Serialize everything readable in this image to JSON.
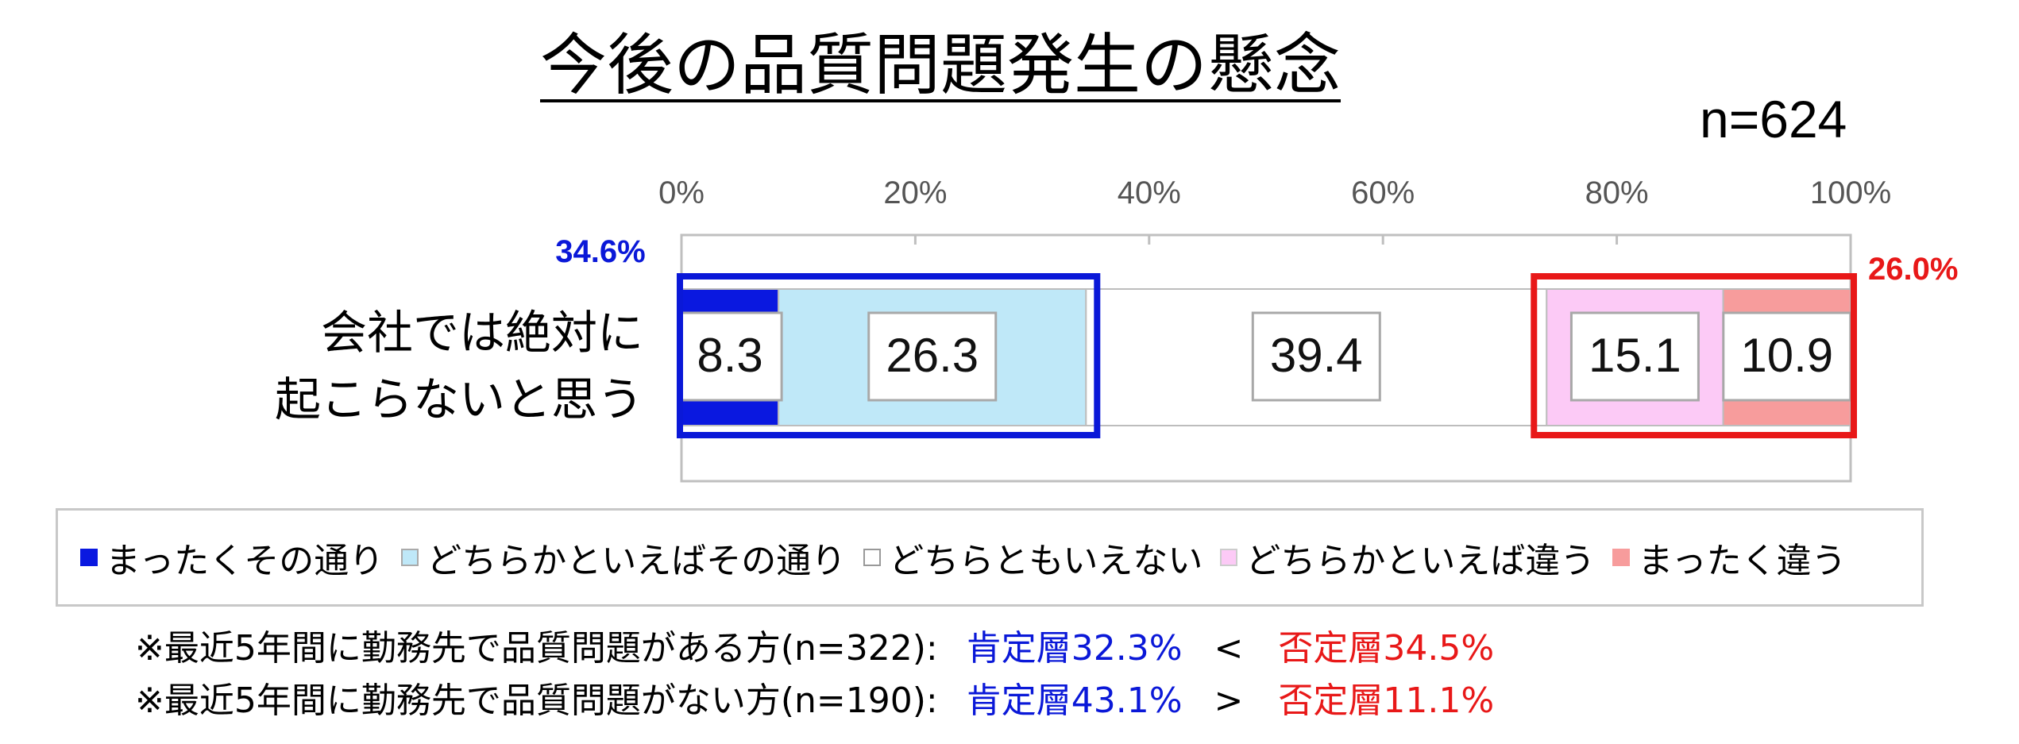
{
  "title": "今後の品質問題発生の懸念",
  "sample_size": "n=624",
  "chart_data": {
    "type": "bar",
    "orientation": "horizontal",
    "stacked": true,
    "categories": [
      "会社では絶対に起こらないと思う"
    ],
    "category_lines": [
      "会社では絶対に",
      "起こらないと思う"
    ],
    "xlim": [
      0,
      100
    ],
    "x_ticks": [
      "0%",
      "20%",
      "40%",
      "60%",
      "80%",
      "100%"
    ],
    "series": [
      {
        "name": "まったくその通り",
        "values": [
          8.3
        ],
        "label": "8.3",
        "color": "#0a18e0"
      },
      {
        "name": "どちらかといえばその通り",
        "values": [
          26.3
        ],
        "label": "26.3",
        "color": "#bfe8f8"
      },
      {
        "name": "どちらともいえない",
        "values": [
          39.4
        ],
        "label": "39.4",
        "color": "#ffffff"
      },
      {
        "name": "どちらかといえば違う",
        "values": [
          15.1
        ],
        "label": "15.1",
        "color": "#fccaf6"
      },
      {
        "name": "まったく違う",
        "values": [
          10.9
        ],
        "label": "10.9",
        "color": "#f79c9c"
      }
    ],
    "annotations": {
      "positive_total": {
        "label": "34.6%",
        "value": 34.6,
        "color": "#0a18d8"
      },
      "negative_total": {
        "label": "26.0%",
        "value": 26.0,
        "color": "#e81818"
      }
    },
    "legend_position": "bottom",
    "grid": false
  },
  "notes": [
    {
      "text": "※最近5年間に勤務先で品質問題がある方(n=322):",
      "positive": "肯定層32.3%",
      "comparator": "<",
      "negative": "否定層34.5%"
    },
    {
      "text": "※最近5年間に勤務先で品質問題がない方(n=190):",
      "positive": "肯定層43.1%",
      "comparator": ">",
      "negative": "否定層11.1%"
    }
  ],
  "colors": {
    "positive": "#0a18d8",
    "negative": "#e81818",
    "axis": "#bfbfbf"
  }
}
